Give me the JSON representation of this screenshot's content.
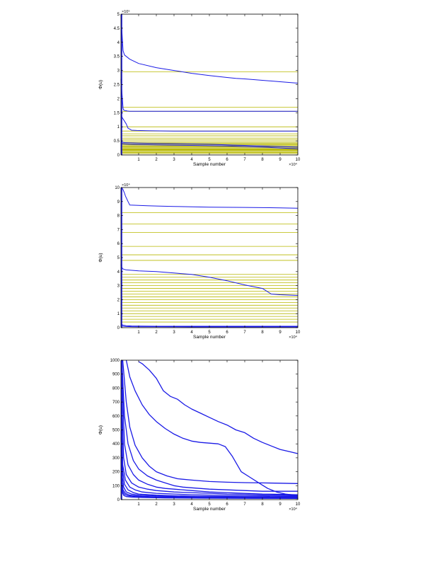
{
  "chart_data": [
    {
      "type": "line",
      "xlabel": "Sample number",
      "ylabel": "Φ(u)",
      "x_multiplier_label": "×10⁴",
      "y_multiplier_label": "×10⁵",
      "xlim": [
        0,
        10
      ],
      "ylim": [
        0,
        5
      ],
      "xticks": [
        "1",
        "2",
        "3",
        "4",
        "5",
        "6",
        "7",
        "8",
        "9",
        "10"
      ],
      "yticks": [
        "0",
        "0.5",
        "1",
        "1.5",
        "2",
        "2.5",
        "3",
        "3.5",
        "4",
        "4.5",
        "5"
      ],
      "colors": {
        "series": "#1a1ae6",
        "reference": "#b8b800",
        "axis": "#000000"
      },
      "reference_levels": [
        0.05,
        0.08,
        0.1,
        0.13,
        0.16,
        0.18,
        0.2,
        0.22,
        0.25,
        0.28,
        0.3,
        0.33,
        0.36,
        0.39,
        0.42,
        0.45,
        0.5,
        0.55,
        0.6,
        0.68,
        0.75,
        0.85,
        1.0,
        1.55,
        1.7,
        2.95
      ],
      "series": [
        {
          "x": [
            0,
            0.08,
            0.12,
            0.2,
            0.5,
            1,
            2,
            3,
            4,
            5,
            6,
            6.5,
            7,
            8,
            9,
            10
          ],
          "y": [
            5,
            4.1,
            3.7,
            3.55,
            3.4,
            3.25,
            3.1,
            3.0,
            2.9,
            2.82,
            2.75,
            2.72,
            2.7,
            2.65,
            2.6,
            2.55
          ]
        },
        {
          "x": [
            0,
            0.08,
            0.12,
            0.15,
            0.2,
            0.3,
            0.35,
            0.5,
            1,
            3,
            5,
            7,
            9,
            10
          ],
          "y": [
            2.7,
            2.0,
            1.65,
            1.6,
            1.58,
            1.57,
            1.56,
            1.55,
            1.55,
            1.55,
            1.55,
            1.55,
            1.55,
            1.55
          ]
        },
        {
          "x": [
            0,
            0.05,
            0.1,
            0.15,
            0.2,
            0.3,
            0.4,
            0.5,
            0.6,
            0.9,
            1.5,
            3,
            5,
            7,
            10
          ],
          "y": [
            1.55,
            1.35,
            1.3,
            1.25,
            1.2,
            1.1,
            0.95,
            0.92,
            0.88,
            0.87,
            0.86,
            0.85,
            0.85,
            0.85,
            0.85
          ]
        },
        {
          "x": [
            0,
            0.05,
            0.1,
            0.2,
            0.5,
            1,
            2,
            3,
            4,
            5,
            6,
            7,
            8,
            9,
            10
          ],
          "y": [
            0.5,
            0.46,
            0.45,
            0.44,
            0.43,
            0.42,
            0.41,
            0.4,
            0.39,
            0.38,
            0.36,
            0.34,
            0.32,
            0.3,
            0.28
          ]
        },
        {
          "x": [
            0,
            0.1,
            0.3,
            0.5,
            1,
            2,
            3,
            4,
            5,
            6,
            7,
            8,
            9,
            10
          ],
          "y": [
            0.42,
            0.4,
            0.39,
            0.38,
            0.37,
            0.36,
            0.35,
            0.34,
            0.33,
            0.32,
            0.3,
            0.28,
            0.25,
            0.22
          ]
        }
      ]
    },
    {
      "type": "line",
      "xlabel": "Sample number",
      "ylabel": "Φ(u)",
      "x_multiplier_label": "×10⁴",
      "y_multiplier_label": "×10⁴",
      "xlim": [
        0,
        10
      ],
      "ylim": [
        0,
        10
      ],
      "xticks": [
        "1",
        "2",
        "3",
        "4",
        "5",
        "6",
        "7",
        "8",
        "9",
        "10"
      ],
      "yticks": [
        "0",
        "1",
        "2",
        "3",
        "4",
        "5",
        "6",
        "7",
        "8",
        "9",
        "10"
      ],
      "colors": {
        "series": "#1a1ae6",
        "reference": "#b8b800",
        "axis": "#000000"
      },
      "reference_levels": [
        0.4,
        0.6,
        0.8,
        1.0,
        1.2,
        1.4,
        1.6,
        1.8,
        2.0,
        2.2,
        2.4,
        2.6,
        2.8,
        3.0,
        3.2,
        3.4,
        3.6,
        3.8,
        4.8,
        5.2,
        5.8,
        6.8,
        7.4,
        8.2
      ],
      "series": [
        {
          "x": [
            0,
            0.1,
            0.2,
            0.25,
            0.4,
            0.5,
            1,
            1.5,
            2,
            3,
            5,
            7,
            9,
            10
          ],
          "y": [
            10,
            9.9,
            9.6,
            9.4,
            9.0,
            8.75,
            8.72,
            8.7,
            8.68,
            8.65,
            8.6,
            8.58,
            8.55,
            8.52
          ]
        },
        {
          "x": [
            0,
            0.05,
            0.1,
            0.2,
            0.3,
            0.5,
            1,
            2,
            3,
            4,
            5,
            6,
            7,
            8,
            8.5,
            9,
            10
          ],
          "y": [
            4.5,
            4.3,
            4.2,
            4.15,
            4.12,
            4.1,
            4.05,
            4.0,
            3.9,
            3.8,
            3.6,
            3.35,
            3.05,
            2.8,
            2.4,
            2.35,
            2.3
          ]
        },
        {
          "x": [
            0,
            0.1,
            0.3,
            0.6,
            1,
            2,
            4,
            6,
            8,
            10
          ],
          "y": [
            0.3,
            0.18,
            0.14,
            0.12,
            0.11,
            0.1,
            0.1,
            0.1,
            0.1,
            0.1
          ]
        },
        {
          "x": [
            0,
            0.1,
            0.3,
            0.6,
            1,
            2,
            4,
            6,
            8,
            10
          ],
          "y": [
            0.2,
            0.1,
            0.08,
            0.07,
            0.06,
            0.06,
            0.05,
            0.05,
            0.05,
            0.05
          ]
        }
      ]
    },
    {
      "type": "line",
      "xlabel": "Sample number",
      "ylabel": "Φ(u)",
      "x_multiplier_label": "×10⁴",
      "xlim": [
        0,
        10
      ],
      "ylim": [
        0,
        1000
      ],
      "xticks": [
        "1",
        "2",
        "3",
        "4",
        "5",
        "6",
        "7",
        "8",
        "9",
        "10"
      ],
      "yticks": [
        "0",
        "100",
        "200",
        "300",
        "400",
        "500",
        "600",
        "700",
        "800",
        "900",
        "1000"
      ],
      "colors": {
        "series": "#1a1ae6",
        "axis": "#000000"
      },
      "series": [
        {
          "x": [
            1,
            1.2,
            1.6,
            2,
            2.4,
            2.8,
            3.2,
            3.6,
            4,
            4.5,
            5,
            5.5,
            6,
            6.5,
            7,
            7.5,
            8,
            8.5,
            9,
            9.5,
            10
          ],
          "y": [
            990,
            975,
            930,
            870,
            780,
            740,
            720,
            680,
            650,
            620,
            590,
            560,
            535,
            500,
            480,
            440,
            410,
            385,
            360,
            345,
            330
          ]
        },
        {
          "x": [
            0.3,
            0.5,
            0.8,
            1.2,
            1.6,
            2,
            2.5,
            3,
            3.5,
            4,
            4.5,
            5,
            5.5,
            5.9,
            6.3,
            6.8,
            7.3,
            7.8,
            8.3,
            8.8,
            9.3,
            10
          ],
          "y": [
            1000,
            880,
            780,
            680,
            610,
            560,
            510,
            470,
            440,
            420,
            410,
            405,
            400,
            380,
            310,
            200,
            160,
            120,
            80,
            55,
            40,
            30
          ]
        },
        {
          "x": [
            0.1,
            0.3,
            0.5,
            0.8,
            1.2,
            1.6,
            2,
            2.6,
            3.2,
            4,
            5,
            6,
            7,
            8,
            9,
            10
          ],
          "y": [
            1000,
            700,
            520,
            390,
            300,
            240,
            200,
            170,
            150,
            140,
            130,
            125,
            122,
            120,
            118,
            115
          ]
        },
        {
          "x": [
            0.05,
            0.2,
            0.4,
            0.7,
            1,
            1.5,
            2,
            2.5,
            3,
            3.5,
            4,
            5,
            6,
            7,
            8,
            9,
            10
          ],
          "y": [
            1000,
            600,
            400,
            280,
            220,
            170,
            140,
            120,
            100,
            90,
            85,
            75,
            70,
            65,
            60,
            60,
            60
          ]
        },
        {
          "x": [
            0.05,
            0.2,
            0.4,
            0.7,
            1,
            1.5,
            2,
            2.5,
            3,
            4,
            5,
            6,
            7,
            8,
            9,
            10
          ],
          "y": [
            900,
            400,
            250,
            180,
            140,
            110,
            90,
            80,
            75,
            65,
            55,
            50,
            45,
            40,
            38,
            35
          ]
        },
        {
          "x": [
            0.03,
            0.15,
            0.3,
            0.6,
            1,
            1.5,
            2,
            3,
            4,
            5,
            6,
            7,
            8,
            9,
            10
          ],
          "y": [
            800,
            300,
            180,
            120,
            90,
            75,
            65,
            55,
            50,
            45,
            40,
            38,
            35,
            33,
            30
          ]
        },
        {
          "x": [
            0.02,
            0.1,
            0.25,
            0.5,
            0.8,
            1.2,
            2,
            3,
            4,
            5,
            6,
            7,
            8,
            9,
            10
          ],
          "y": [
            700,
            250,
            140,
            90,
            70,
            55,
            45,
            40,
            35,
            32,
            30,
            28,
            27,
            26,
            25
          ]
        },
        {
          "x": [
            0.02,
            0.1,
            0.2,
            0.4,
            0.7,
            1,
            2,
            3,
            4,
            5,
            6,
            7,
            8,
            9,
            10
          ],
          "y": [
            600,
            200,
            110,
            70,
            50,
            40,
            32,
            28,
            25,
            23,
            22,
            21,
            20,
            20,
            20
          ]
        },
        {
          "x": [
            0.01,
            0.08,
            0.15,
            0.3,
            0.6,
            1,
            2,
            3,
            4,
            5,
            6,
            7,
            8,
            9,
            10
          ],
          "y": [
            500,
            160,
            90,
            55,
            40,
            32,
            26,
            22,
            20,
            19,
            18,
            17,
            16,
            16,
            15
          ]
        },
        {
          "x": [
            0.01,
            0.05,
            0.12,
            0.25,
            0.5,
            1,
            2,
            3,
            4,
            5,
            6,
            7,
            8,
            9,
            10
          ],
          "y": [
            450,
            130,
            70,
            45,
            32,
            25,
            20,
            18,
            16,
            15,
            14,
            14,
            13,
            13,
            12
          ]
        },
        {
          "x": [
            0.01,
            0.05,
            0.1,
            0.2,
            0.4,
            0.8,
            1.5,
            3,
            5,
            7,
            10
          ],
          "y": [
            380,
            110,
            60,
            38,
            28,
            22,
            18,
            15,
            13,
            12,
            10
          ]
        },
        {
          "x": [
            0.01,
            0.04,
            0.08,
            0.16,
            0.3,
            0.6,
            1.2,
            2.5,
            5,
            7.5,
            10
          ],
          "y": [
            320,
            90,
            50,
            30,
            22,
            18,
            15,
            12,
            10,
            9,
            8
          ]
        }
      ]
    }
  ]
}
